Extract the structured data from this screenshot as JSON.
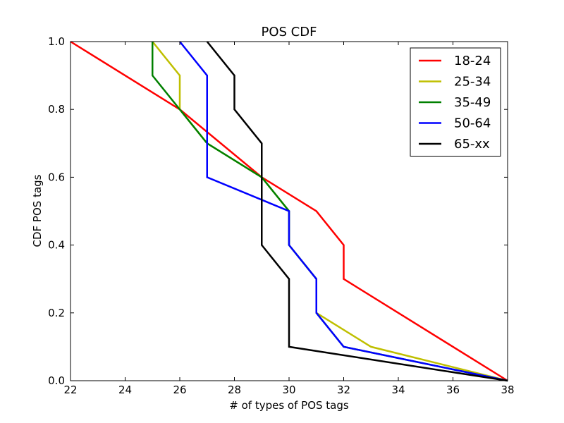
{
  "chart_data": {
    "type": "line",
    "title": "POS CDF",
    "xlabel": "# of types of POS tags",
    "ylabel": "CDF POS tags",
    "xlim": [
      22,
      38
    ],
    "ylim": [
      0.0,
      1.0
    ],
    "xticks": [
      22,
      24,
      26,
      28,
      30,
      32,
      34,
      36,
      38
    ],
    "xtick_labels": [
      "22",
      "24",
      "26",
      "28",
      "30",
      "32",
      "34",
      "36",
      "38"
    ],
    "yticks": [
      0.0,
      0.2,
      0.4,
      0.6,
      0.8,
      1.0
    ],
    "ytick_labels": [
      "0.0",
      "0.2",
      "0.4",
      "0.6",
      "0.8",
      "1.0"
    ],
    "grid": false,
    "legend_position": "top-right",
    "series": [
      {
        "name": "18-24",
        "color": "#ff0000",
        "x": [
          22,
          26,
          29,
          31,
          32,
          32,
          38
        ],
        "y": [
          1.0,
          0.8,
          0.6,
          0.5,
          0.4,
          0.3,
          0.0
        ]
      },
      {
        "name": "25-34",
        "color": "#bfbf00",
        "x": [
          25,
          26,
          26,
          27,
          29,
          30,
          30,
          31,
          31,
          33,
          38
        ],
        "y": [
          1.0,
          0.9,
          0.8,
          0.7,
          0.6,
          0.5,
          0.4,
          0.3,
          0.2,
          0.1,
          0.0
        ]
      },
      {
        "name": "35-49",
        "color": "#008000",
        "x": [
          25,
          25,
          26,
          27,
          29,
          30,
          30,
          31,
          31,
          32,
          38
        ],
        "y": [
          1.0,
          0.9,
          0.8,
          0.7,
          0.6,
          0.5,
          0.4,
          0.3,
          0.2,
          0.1,
          0.0
        ]
      },
      {
        "name": "50-64",
        "color": "#0000ff",
        "x": [
          26,
          27,
          27,
          27,
          30,
          30,
          30,
          31,
          31,
          32,
          38
        ],
        "y": [
          1.0,
          0.9,
          0.7,
          0.6,
          0.5,
          0.4,
          0.4,
          0.3,
          0.2,
          0.1,
          0.0
        ]
      },
      {
        "name": "65-xx",
        "color": "#000000",
        "x": [
          27,
          28,
          28,
          29,
          29,
          29,
          30,
          30,
          38
        ],
        "y": [
          1.0,
          0.9,
          0.8,
          0.7,
          0.4,
          0.4,
          0.3,
          0.1,
          0.0
        ]
      }
    ]
  }
}
